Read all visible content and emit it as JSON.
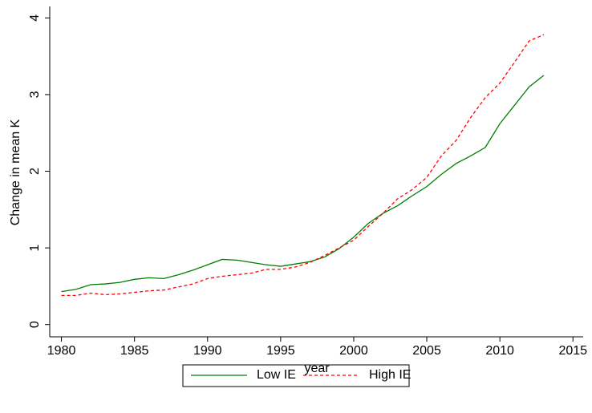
{
  "chart_data": {
    "type": "line",
    "x_label": "year",
    "y_label": "Change in mean K",
    "x": [
      1980,
      1981,
      1982,
      1983,
      1984,
      1985,
      1986,
      1987,
      1988,
      1989,
      1990,
      1991,
      1992,
      1993,
      1994,
      1995,
      1996,
      1997,
      1998,
      1999,
      2000,
      2001,
      2002,
      2003,
      2004,
      2005,
      2006,
      2007,
      2008,
      2009,
      2010,
      2011,
      2012,
      2013
    ],
    "series": [
      {
        "name": "Low IE",
        "color": "#007f00",
        "linestyle": "solid",
        "values": [
          0.43,
          0.46,
          0.52,
          0.53,
          0.55,
          0.59,
          0.61,
          0.6,
          0.65,
          0.71,
          0.78,
          0.85,
          0.84,
          0.81,
          0.78,
          0.76,
          0.79,
          0.82,
          0.88,
          0.99,
          1.14,
          1.32,
          1.45,
          1.55,
          1.68,
          1.8,
          1.96,
          2.1,
          2.2,
          2.31,
          2.62,
          2.86,
          3.1,
          3.25
        ]
      },
      {
        "name": "High IE",
        "color": "#ff0000",
        "linestyle": "dashed",
        "values": [
          0.38,
          0.38,
          0.41,
          0.39,
          0.4,
          0.42,
          0.44,
          0.45,
          0.49,
          0.53,
          0.6,
          0.63,
          0.65,
          0.67,
          0.72,
          0.72,
          0.75,
          0.81,
          0.9,
          1.0,
          1.1,
          1.28,
          1.45,
          1.64,
          1.76,
          1.92,
          2.2,
          2.4,
          2.7,
          2.96,
          3.15,
          3.42,
          3.7,
          3.78
        ]
      }
    ],
    "xlim": [
      1979.2,
      2015.7
    ],
    "xticks": [
      1980,
      1985,
      1990,
      1995,
      2000,
      2005,
      2010,
      2015
    ],
    "ylim": [
      -0.16,
      4.15
    ],
    "yticks": [
      0,
      1,
      2,
      3,
      4
    ],
    "grid": false,
    "legend": "bottom"
  }
}
